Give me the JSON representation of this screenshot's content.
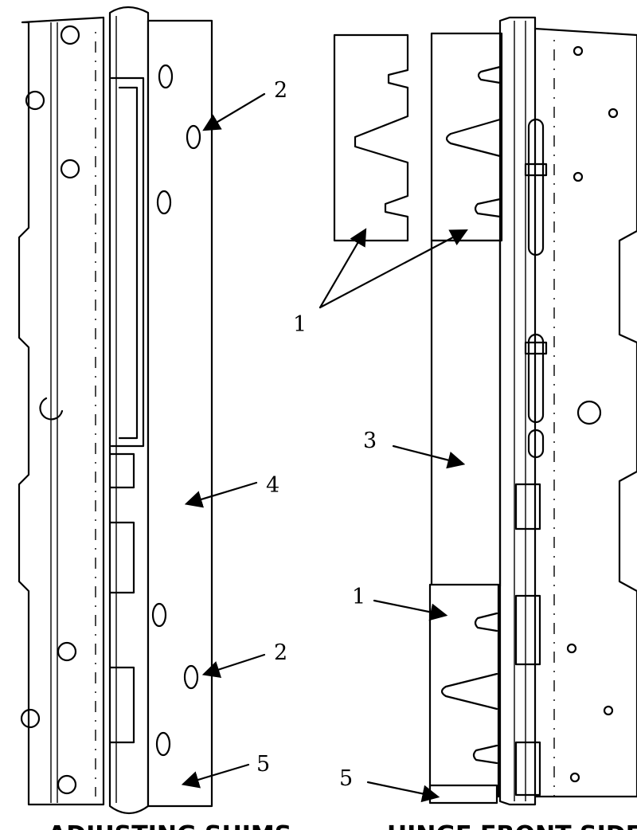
{
  "callouts": {
    "c1_top": "1",
    "c1_bottom": "1",
    "c2_top": "2",
    "c2_bottom": "2",
    "c3": "3",
    "c4": "4",
    "c5_left": "5",
    "c5_right": "5"
  },
  "captions": {
    "left": "ADJUSTING SHIMS",
    "right": "HINGE FRONT SIDE"
  }
}
